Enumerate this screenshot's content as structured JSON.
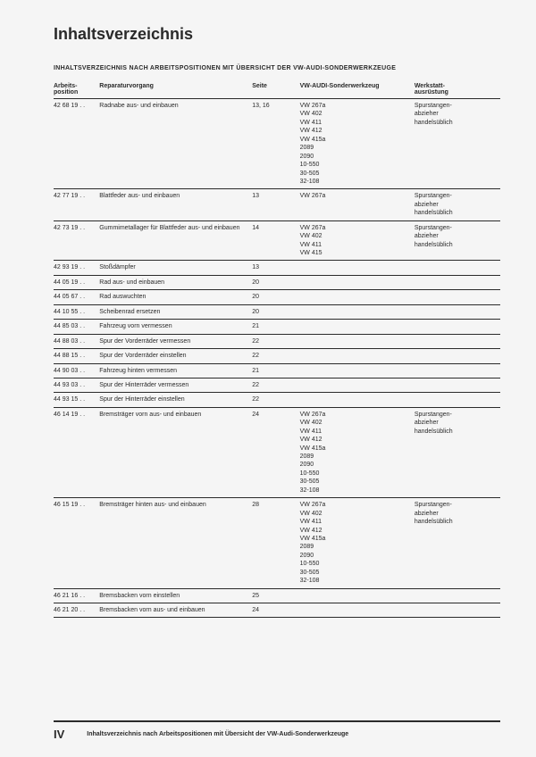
{
  "title": "Inhaltsverzeichnis",
  "subtitle": "INHALTSVERZEICHNIS NACH ARBEITSPOSITIONEN MIT ÜBERSICHT DER VW-AUDI-SONDERWERKZEUGE",
  "columns": {
    "pos": "Arbeits-\nposition",
    "rep": "Reparaturvorgang",
    "seite": "Seite",
    "tool": "VW-AUDI-Sonderwerkzeug",
    "werk": "Werkstatt-\nausrüstung"
  },
  "rows": [
    {
      "pos": "42 68 19 . .",
      "rep": "Radnabe aus- und einbauen",
      "seite": "13, 16",
      "tool": "VW 267a\nVW 402\nVW 411\nVW 412\nVW 415a\n2089\n2090\n10-550\n30-505\n32-108",
      "werk": "Spurstangen-\nabzieher\nhandelsüblich"
    },
    {
      "pos": "42 77 19 . .",
      "rep": "Blattfeder aus- und einbauen",
      "seite": "13",
      "tool": "VW 267a",
      "werk": "Spurstangen-\nabzieher\nhandelsüblich"
    },
    {
      "pos": "42 73 19 . .",
      "rep": "Gummimetallager für Blattfeder aus- und einbauen",
      "seite": "14",
      "tool": "VW 267a\nVW 402\nVW 411\nVW 415",
      "werk": "Spurstangen-\nabzieher\nhandelsüblich"
    },
    {
      "pos": "42 93 19 . .",
      "rep": "Stoßdämpfer",
      "seite": "13",
      "tool": "",
      "werk": ""
    },
    {
      "pos": "44 05 19 . .",
      "rep": "Rad aus- und einbauen",
      "seite": "20",
      "tool": "",
      "werk": ""
    },
    {
      "pos": "44 05 67 . .",
      "rep": "Rad auswuchten",
      "seite": "20",
      "tool": "",
      "werk": ""
    },
    {
      "pos": "44 10 55 . .",
      "rep": "Scheibenrad ersetzen",
      "seite": "20",
      "tool": "",
      "werk": ""
    },
    {
      "pos": "44 85 03 . .",
      "rep": "Fahrzeug vorn vermessen",
      "seite": "21",
      "tool": "",
      "werk": ""
    },
    {
      "pos": "44 88 03 . .",
      "rep": "Spur der Vorderräder vermessen",
      "seite": "22",
      "tool": "",
      "werk": ""
    },
    {
      "pos": "44 88 15 . .",
      "rep": "Spur der Vorderräder einstellen",
      "seite": "22",
      "tool": "",
      "werk": ""
    },
    {
      "pos": "44 90 03 . .",
      "rep": "Fahrzeug hinten vermessen",
      "seite": "21",
      "tool": "",
      "werk": ""
    },
    {
      "pos": "44 93 03 . .",
      "rep": "Spur der Hinterräder vermessen",
      "seite": "22",
      "tool": "",
      "werk": ""
    },
    {
      "pos": "44 93 15 . .",
      "rep": "Spur der Hinterräder einstellen",
      "seite": "22",
      "tool": "",
      "werk": ""
    },
    {
      "pos": "46 14 19 . .",
      "rep": "Bremsträger vorn aus- und einbauen",
      "seite": "24",
      "tool": "VW 267a\nVW 402\nVW 411\nVW 412\nVW 415a\n2089\n2090\n10-550\n30-505\n32-108",
      "werk": "Spurstangen-\nabzieher\nhandelsüblich"
    },
    {
      "pos": "46 15 19 . .",
      "rep": "Bremsträger hinten aus- und einbauen",
      "seite": "28",
      "tool": "VW 267a\nVW 402\nVW 411\nVW 412\nVW 415a\n2089\n2090\n10-550\n30-505\n32-108",
      "werk": "Spurstangen-\nabzieher\nhandelsüblich"
    },
    {
      "pos": "46 21 16 . .",
      "rep": "Bremsbacken vorn einstellen",
      "seite": "25",
      "tool": "",
      "werk": ""
    },
    {
      "pos": "46 21 20 . .",
      "rep": "Bremsbacken vorn aus- und einbauen",
      "seite": "24",
      "tool": "",
      "werk": ""
    }
  ],
  "footer": {
    "pageNum": "IV",
    "text": "Inhaltsverzeichnis nach Arbeitspositionen mit Übersicht der VW-Audi-Sonderwerkzeuge"
  }
}
